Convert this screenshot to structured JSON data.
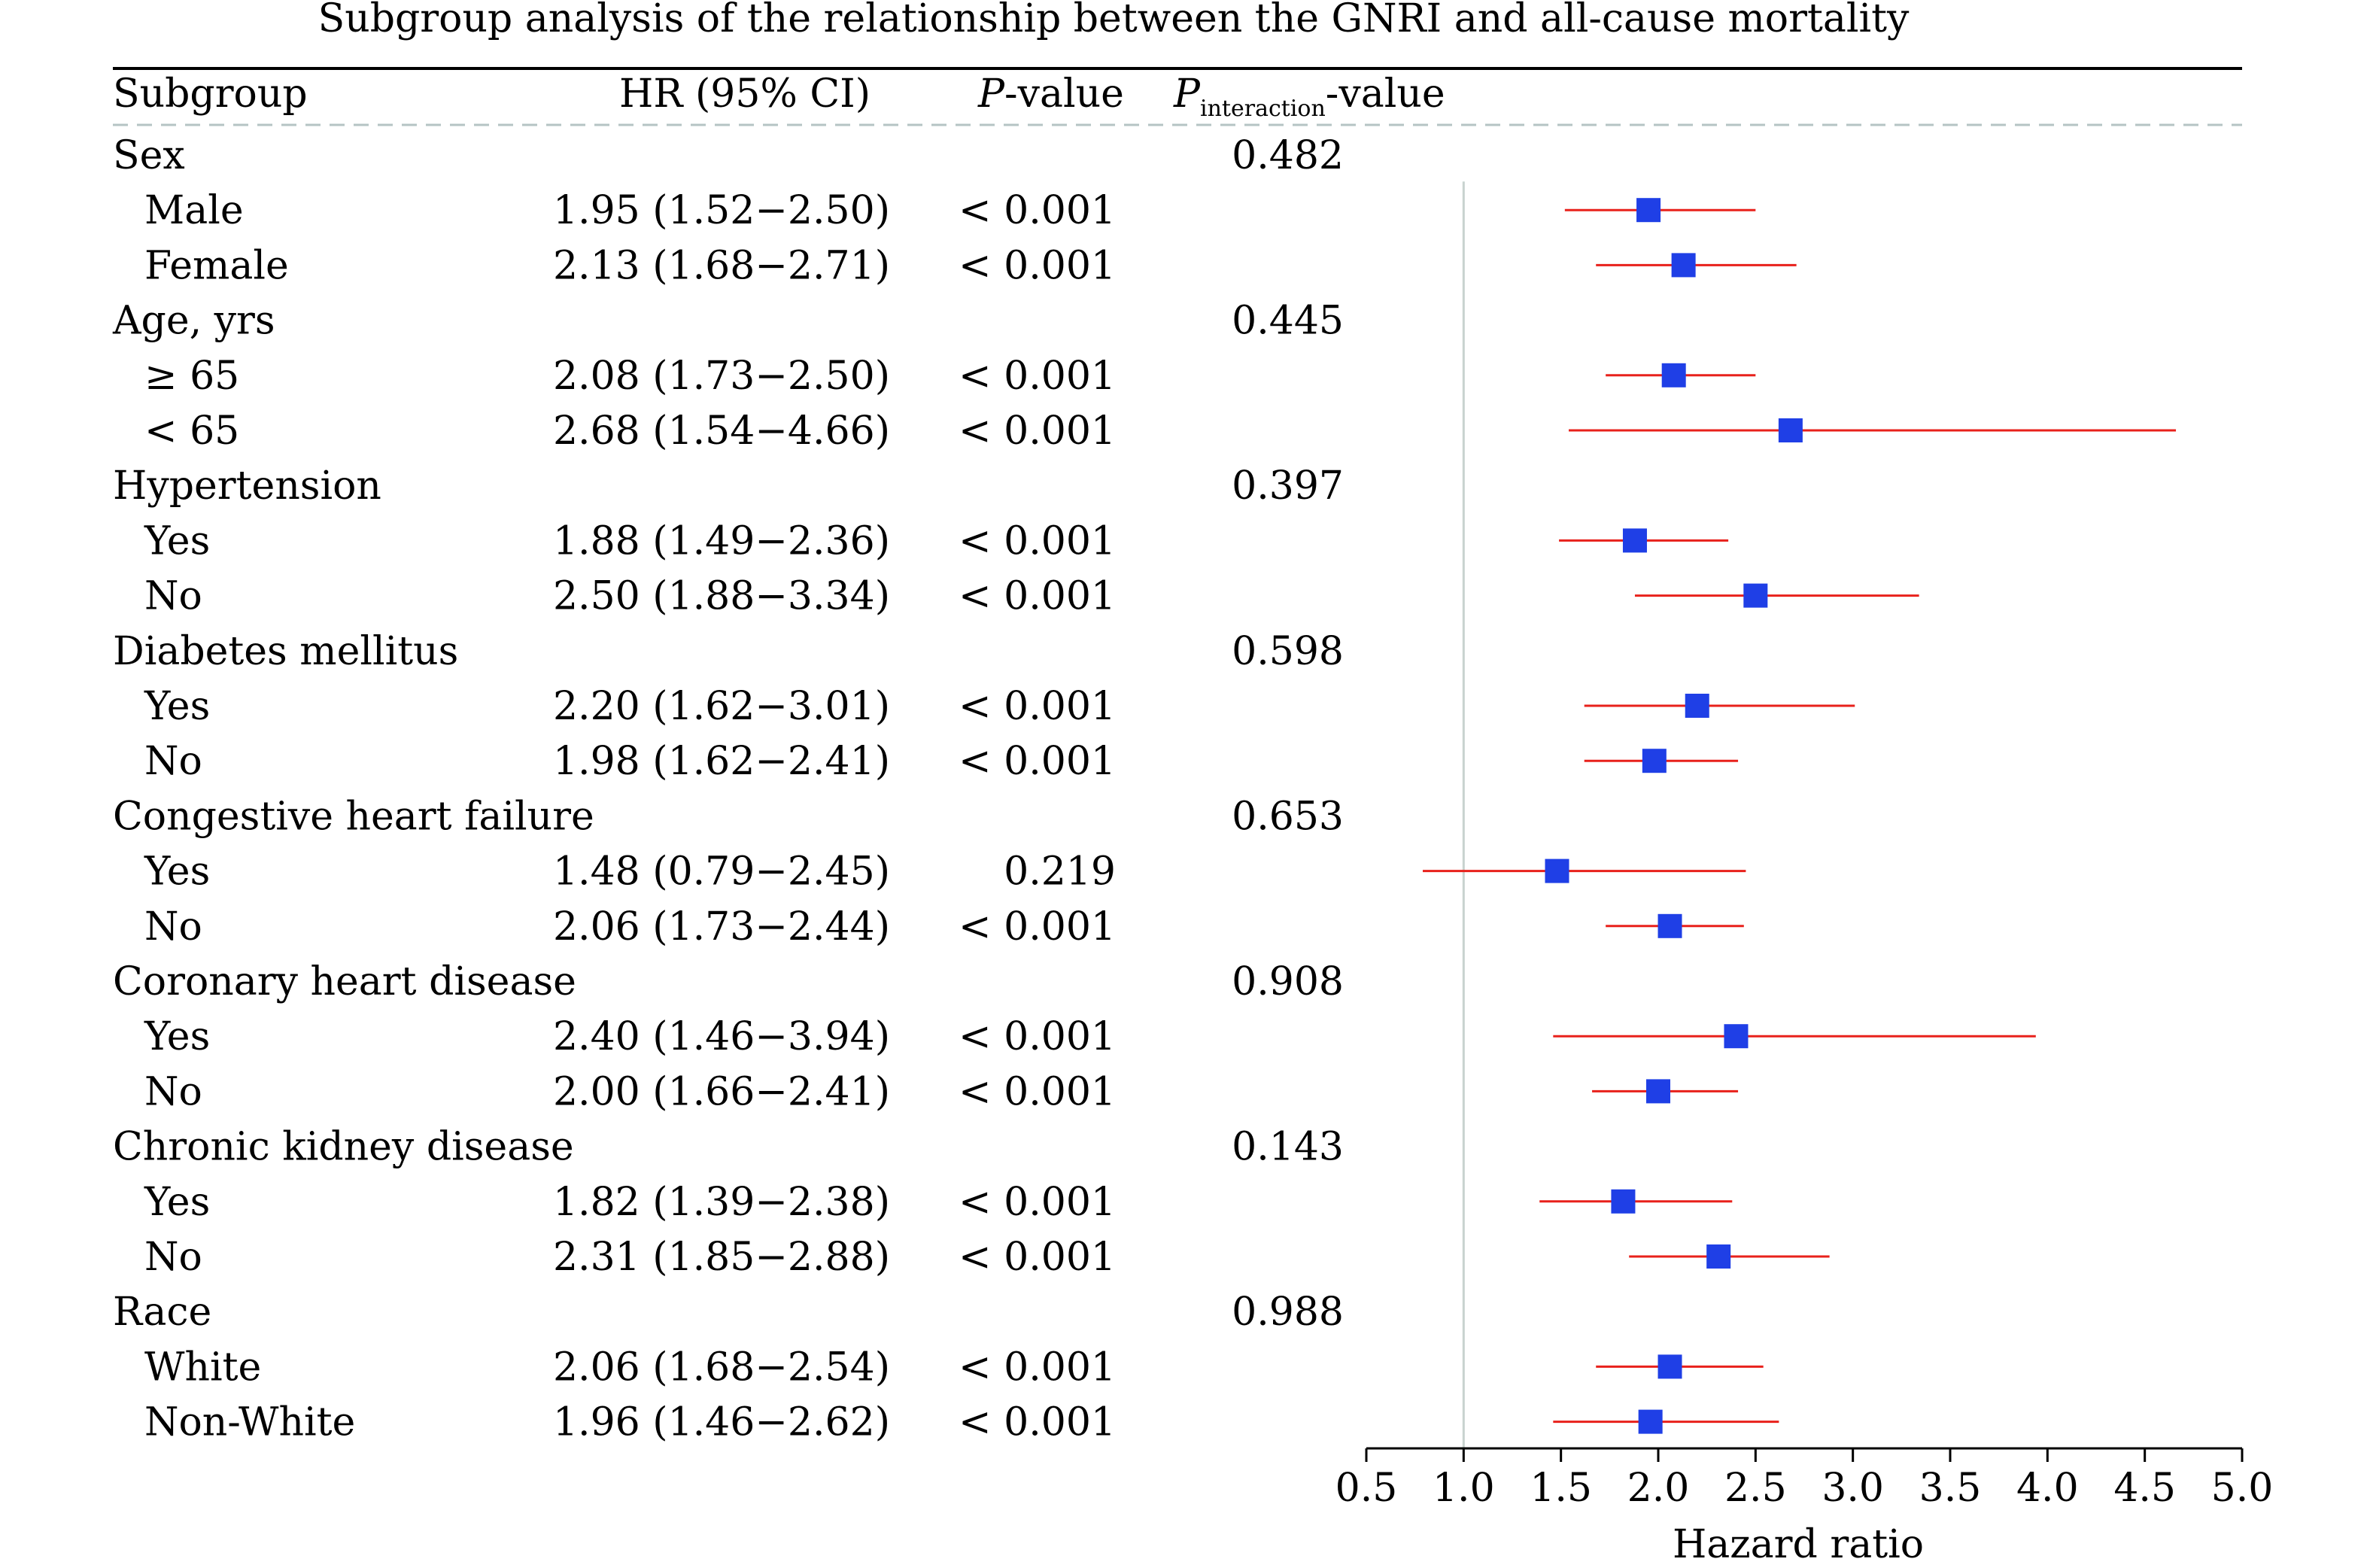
{
  "chart_data": {
    "type": "forest",
    "title": "Subgroup analysis of the relationship between the GNRI and all-cause mortality",
    "headers": {
      "subgroup": "Subgroup",
      "hr": "HR (95% CI)",
      "p_italic": "P",
      "p_rest": "-value",
      "pint_italic": "P",
      "pint_sub": "interaction",
      "pint_rest": "-value"
    },
    "xlabel": "Hazard ratio",
    "xlim": [
      0.5,
      5.0
    ],
    "xticks": [
      "0.5",
      "1.0",
      "1.5",
      "2.0",
      "2.5",
      "3.0",
      "3.5",
      "4.0",
      "4.5",
      "5.0"
    ],
    "reference_line": 1.0,
    "colors": {
      "marker": "#1f3fe6",
      "ci": "#e8211b",
      "reference": "#c8d3cf",
      "header_dash": "#b5c4c4"
    },
    "groups": [
      {
        "label": "Sex",
        "p_interaction": "0.482",
        "rows": [
          {
            "label": "Male",
            "hr_text": "1.95 (1.52−2.50)",
            "p": "< 0.001",
            "hr": 1.95,
            "lo": 1.52,
            "hi": 2.5
          },
          {
            "label": "Female",
            "hr_text": "2.13 (1.68−2.71)",
            "p": "< 0.001",
            "hr": 2.13,
            "lo": 1.68,
            "hi": 2.71
          }
        ]
      },
      {
        "label": "Age, yrs",
        "p_interaction": "0.445",
        "rows": [
          {
            "label": "≥ 65",
            "hr_text": "2.08 (1.73−2.50)",
            "p": "< 0.001",
            "hr": 2.08,
            "lo": 1.73,
            "hi": 2.5
          },
          {
            "label": "< 65",
            "hr_text": "2.68 (1.54−4.66)",
            "p": "< 0.001",
            "hr": 2.68,
            "lo": 1.54,
            "hi": 4.66
          }
        ]
      },
      {
        "label": "Hypertension",
        "p_interaction": "0.397",
        "rows": [
          {
            "label": "Yes",
            "hr_text": "1.88 (1.49−2.36)",
            "p": "< 0.001",
            "hr": 1.88,
            "lo": 1.49,
            "hi": 2.36
          },
          {
            "label": "No",
            "hr_text": "2.50 (1.88−3.34)",
            "p": "< 0.001",
            "hr": 2.5,
            "lo": 1.88,
            "hi": 3.34
          }
        ]
      },
      {
        "label": "Diabetes mellitus",
        "p_interaction": "0.598",
        "rows": [
          {
            "label": "Yes",
            "hr_text": "2.20 (1.62−3.01)",
            "p": "< 0.001",
            "hr": 2.2,
            "lo": 1.62,
            "hi": 3.01
          },
          {
            "label": "No",
            "hr_text": "1.98 (1.62−2.41)",
            "p": "< 0.001",
            "hr": 1.98,
            "lo": 1.62,
            "hi": 2.41
          }
        ]
      },
      {
        "label": "Congestive heart failure",
        "p_interaction": "0.653",
        "rows": [
          {
            "label": "Yes",
            "hr_text": "1.48 (0.79−2.45)",
            "p": "0.219",
            "hr": 1.48,
            "lo": 0.79,
            "hi": 2.45
          },
          {
            "label": "No",
            "hr_text": "2.06 (1.73−2.44)",
            "p": "< 0.001",
            "hr": 2.06,
            "lo": 1.73,
            "hi": 2.44
          }
        ]
      },
      {
        "label": "Coronary heart disease",
        "p_interaction": "0.908",
        "rows": [
          {
            "label": "Yes",
            "hr_text": "2.40 (1.46−3.94)",
            "p": "< 0.001",
            "hr": 2.4,
            "lo": 1.46,
            "hi": 3.94
          },
          {
            "label": "No",
            "hr_text": "2.00 (1.66−2.41)",
            "p": "< 0.001",
            "hr": 2.0,
            "lo": 1.66,
            "hi": 2.41
          }
        ]
      },
      {
        "label": "Chronic kidney disease",
        "p_interaction": "0.143",
        "rows": [
          {
            "label": "Yes",
            "hr_text": "1.82 (1.39−2.38)",
            "p": "< 0.001",
            "hr": 1.82,
            "lo": 1.39,
            "hi": 2.38
          },
          {
            "label": "No",
            "hr_text": "2.31 (1.85−2.88)",
            "p": "< 0.001",
            "hr": 2.31,
            "lo": 1.85,
            "hi": 2.88
          }
        ]
      },
      {
        "label": "Race",
        "p_interaction": "0.988",
        "rows": [
          {
            "label": "White",
            "hr_text": "2.06 (1.68−2.54)",
            "p": "< 0.001",
            "hr": 2.06,
            "lo": 1.68,
            "hi": 2.54
          },
          {
            "label": "Non-White",
            "hr_text": "1.96 (1.46−2.62)",
            "p": "< 0.001",
            "hr": 1.96,
            "lo": 1.46,
            "hi": 2.62
          }
        ]
      }
    ]
  }
}
